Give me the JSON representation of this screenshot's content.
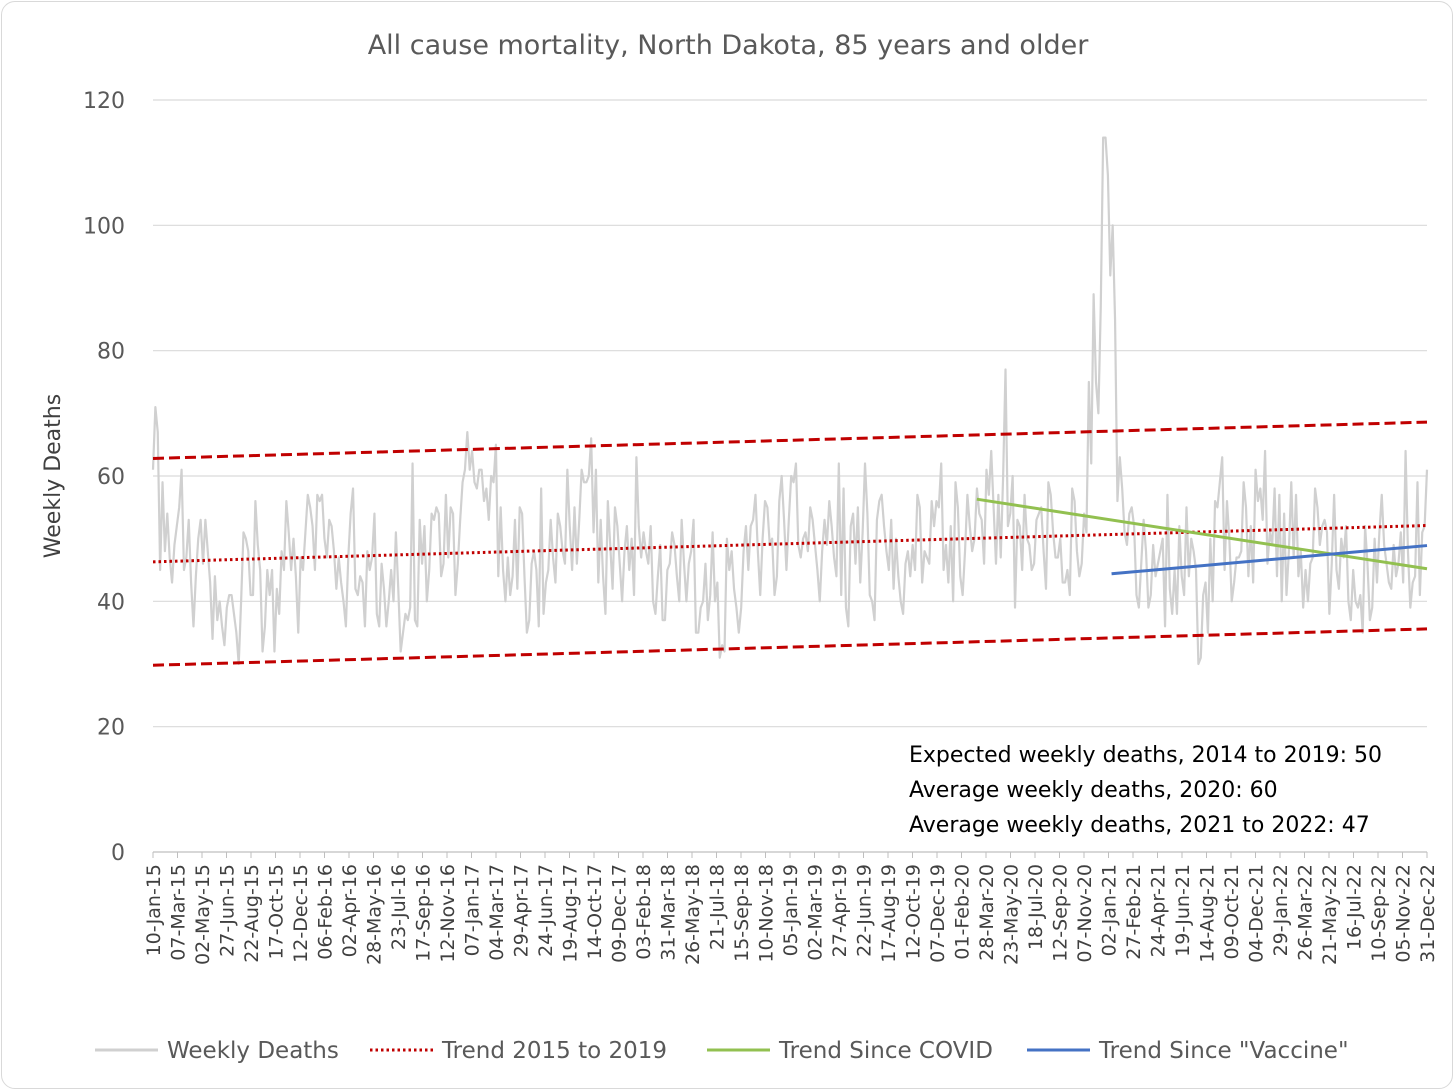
{
  "colors": {
    "weekly": "#d0d0d0",
    "trend": "#c00000",
    "covid": "#92c050",
    "vaccine": "#4472c4",
    "grid": "#d9d9d9",
    "axis": "#bfbfbf"
  },
  "chart_data": {
    "type": "line",
    "title": "All cause mortality, North Dakota, 85 years and older",
    "ylabel": "Weekly Deaths",
    "xlabel": "",
    "ylim": [
      0,
      120
    ],
    "yticks": [
      0,
      20,
      40,
      60,
      80,
      100,
      120
    ],
    "grid": true,
    "legend_position": "bottom",
    "x_start": "2015-01-10",
    "x_end": "2022-12-31",
    "x_tick_labels": [
      "10-Jan-15",
      "07-Mar-15",
      "02-May-15",
      "27-Jun-15",
      "22-Aug-15",
      "17-Oct-15",
      "12-Dec-15",
      "06-Feb-16",
      "02-Apr-16",
      "28-May-16",
      "23-Jul-16",
      "17-Sep-16",
      "12-Nov-16",
      "07-Jan-17",
      "04-Mar-17",
      "29-Apr-17",
      "24-Jun-17",
      "19-Aug-17",
      "14-Oct-17",
      "09-Dec-17",
      "03-Feb-18",
      "31-Mar-18",
      "26-May-18",
      "21-Jul-18",
      "15-Sep-18",
      "10-Nov-18",
      "05-Jan-19",
      "02-Mar-19",
      "27-Apr-19",
      "22-Jun-19",
      "17-Aug-19",
      "12-Oct-19",
      "07-Dec-19",
      "01-Feb-20",
      "28-Mar-20",
      "23-May-20",
      "18-Jul-20",
      "12-Sep-20",
      "07-Nov-20",
      "02-Jan-21",
      "27-Feb-21",
      "24-Apr-21",
      "19-Jun-21",
      "14-Aug-21",
      "09-Oct-21",
      "04-Dec-21",
      "29-Jan-22",
      "26-Mar-22",
      "21-May-22",
      "16-Jul-22",
      "10-Sep-22",
      "05-Nov-22",
      "31-Dec-22"
    ],
    "series": [
      {
        "name": "Weekly Deaths",
        "style": "solid",
        "color": "#d0d0d0",
        "values": [
          61,
          71,
          67,
          45,
          59,
          48,
          54,
          47,
          43,
          49,
          52,
          55,
          61,
          45,
          47,
          53,
          43,
          36,
          44,
          50,
          53,
          46,
          53,
          48,
          43,
          34,
          44,
          37,
          40,
          36,
          33,
          39,
          41,
          41,
          38,
          35,
          30,
          40,
          51,
          50,
          48,
          41,
          41,
          56,
          49,
          45,
          32,
          36,
          45,
          41,
          45,
          32,
          42,
          38,
          48,
          45,
          56,
          51,
          45,
          50,
          44,
          35,
          47,
          45,
          51,
          57,
          55,
          52,
          45,
          57,
          56,
          57,
          50,
          47,
          53,
          52,
          48,
          42,
          47,
          43,
          40,
          36,
          47,
          54,
          58,
          42,
          41,
          44,
          43,
          36,
          48,
          45,
          47,
          54,
          38,
          36,
          46,
          42,
          36,
          40,
          45,
          40,
          51,
          42,
          32,
          35,
          38,
          37,
          39,
          62,
          37,
          36,
          53,
          46,
          52,
          40,
          45,
          54,
          53,
          55,
          54,
          44,
          46,
          57,
          47,
          55,
          54,
          41,
          46,
          53,
          59,
          61,
          67,
          61,
          64,
          59,
          58,
          61,
          61,
          56,
          58,
          53,
          60,
          59,
          65,
          44,
          55,
          45,
          40,
          47,
          41,
          44,
          53,
          42,
          55,
          54,
          44,
          35,
          37,
          46,
          48,
          45,
          36,
          58,
          38,
          43,
          45,
          53,
          47,
          43,
          54,
          52,
          48,
          46,
          61,
          52,
          45,
          55,
          46,
          53,
          61,
          59,
          59,
          60,
          66,
          51,
          61,
          43,
          53,
          44,
          38,
          56,
          49,
          42,
          55,
          52,
          46,
          40,
          48,
          52,
          45,
          50,
          41,
          63,
          52,
          47,
          51,
          48,
          46,
          52,
          40,
          38,
          44,
          49,
          37,
          37,
          45,
          46,
          51,
          49,
          44,
          40,
          53,
          46,
          40,
          46,
          48,
          53,
          35,
          35,
          39,
          40,
          46,
          37,
          41,
          51,
          40,
          43,
          31,
          33,
          32,
          50,
          45,
          48,
          42,
          39,
          35,
          39,
          48,
          52,
          45,
          52,
          53,
          57,
          48,
          41,
          50,
          56,
          55,
          49,
          50,
          41,
          44,
          56,
          60,
          53,
          45,
          53,
          60,
          59,
          62,
          49,
          47,
          50,
          51,
          48,
          55,
          53,
          49,
          45,
          40,
          48,
          53,
          49,
          56,
          52,
          47,
          44,
          62,
          41,
          58,
          39,
          36,
          52,
          54,
          46,
          55,
          43,
          51,
          62,
          54,
          41,
          40,
          37,
          53,
          56,
          57,
          52,
          48,
          45,
          53,
          42,
          50,
          44,
          40,
          38,
          46,
          48,
          44,
          49,
          45,
          57,
          55,
          43,
          48,
          47,
          46,
          56,
          52,
          56,
          55,
          62,
          45,
          49,
          43,
          52,
          40,
          59,
          55,
          44,
          41,
          48,
          57,
          52,
          48,
          50,
          58,
          54,
          53,
          46,
          61,
          57,
          64,
          55,
          46,
          57,
          47,
          60,
          77,
          52,
          54,
          60,
          39,
          53,
          52,
          45,
          57,
          50,
          49,
          45,
          46,
          53,
          54,
          55,
          48,
          42,
          59,
          57,
          51,
          47,
          47,
          50,
          43,
          43,
          45,
          41,
          58,
          56,
          48,
          44,
          46,
          54,
          51,
          75,
          62,
          89,
          75,
          70,
          87,
          114,
          114,
          108,
          92,
          100,
          85,
          56,
          63,
          58,
          51,
          49,
          54,
          55,
          52,
          41,
          39,
          46,
          53,
          48,
          39,
          41,
          49,
          44,
          46,
          48,
          50,
          36,
          57,
          42,
          38,
          45,
          38,
          52,
          44,
          41,
          55,
          44,
          50,
          48,
          45,
          30,
          31,
          41,
          43,
          35,
          50,
          40,
          56,
          55,
          59,
          63,
          45,
          56,
          50,
          40,
          43,
          47,
          47,
          48,
          59,
          55,
          44,
          52,
          43,
          61,
          56,
          58,
          53,
          64,
          46,
          51,
          49,
          58,
          44,
          57,
          40,
          54,
          41,
          48,
          59,
          47,
          57,
          44,
          48,
          39,
          45,
          40,
          46,
          47,
          58,
          55,
          49,
          52,
          53,
          51,
          38,
          46,
          57,
          45,
          42,
          50,
          47,
          52,
          40,
          37,
          45,
          40,
          39,
          41,
          35,
          52,
          46,
          37,
          39,
          50,
          43,
          51,
          57,
          49,
          46,
          43,
          42,
          49,
          44,
          46,
          51,
          43,
          64,
          48,
          39,
          43,
          44,
          59,
          41,
          51,
          52,
          61
        ],
        "note": "approximate readings"
      },
      {
        "name": "Trend 2015 to 2019",
        "style": "dotted",
        "color": "#c00000",
        "points": [
          [
            "2015-01-10",
            46.3
          ],
          [
            "2022-12-31",
            52.1
          ]
        ]
      },
      {
        "name": "",
        "style": "dashed",
        "color": "#c00000",
        "points": [
          [
            "2015-01-10",
            62.8
          ],
          [
            "2022-12-31",
            68.6
          ]
        ]
      },
      {
        "name": "",
        "style": "dashed",
        "color": "#c00000",
        "points": [
          [
            "2015-01-10",
            29.8
          ],
          [
            "2022-12-31",
            35.6
          ]
        ]
      },
      {
        "name": "Trend Since COVID",
        "style": "solid",
        "color": "#92c050",
        "points": [
          [
            "2020-03-07",
            56.3
          ],
          [
            "2022-12-31",
            45.2
          ]
        ]
      },
      {
        "name": "Trend Since \"Vaccine\"",
        "style": "solid",
        "color": "#4472c4",
        "points": [
          [
            "2021-01-09",
            44.4
          ],
          [
            "2022-12-31",
            48.9
          ]
        ]
      }
    ],
    "annotations": [
      "Expected weekly deaths, 2014 to 2019: 50",
      "Average weekly deaths, 2020: 60",
      "Average weekly deaths, 2021 to 2022: 47"
    ]
  },
  "legend": [
    {
      "label": "Weekly Deaths",
      "style": "solid",
      "color": "#d0d0d0"
    },
    {
      "label": "Trend 2015 to 2019",
      "style": "dotted",
      "color": "#c00000"
    },
    {
      "label": "Trend Since COVID",
      "style": "solid",
      "color": "#92c050"
    },
    {
      "label": "Trend Since \"Vaccine\"",
      "style": "solid",
      "color": "#4472c4"
    }
  ]
}
